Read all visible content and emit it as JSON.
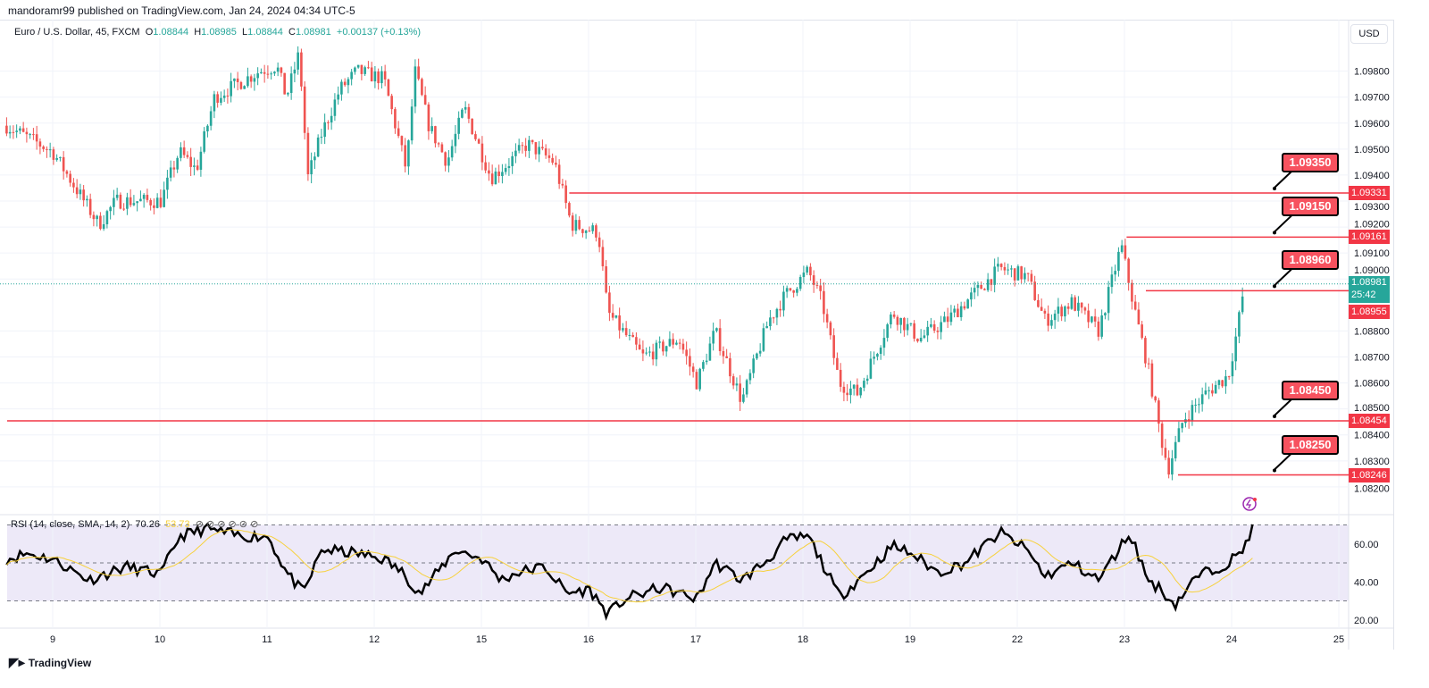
{
  "publish_line": "mandoramr99 published on TradingView.com, Jan 24, 2024 04:34 UTC-5",
  "legend": {
    "symbol": "Euro / U.S. Dollar, 45, FXCM",
    "o_label": "O",
    "o": "1.08844",
    "h_label": "H",
    "h": "1.08985",
    "l_label": "L",
    "l": "1.08844",
    "c_label": "C",
    "c": "1.08981",
    "change": "+0.00137 (+0.13%)"
  },
  "currency_button": "USD",
  "price_axis": [
    "1.09800",
    "1.09700",
    "1.09600",
    "1.09500",
    "1.09400",
    "1.09300",
    "1.09200",
    "1.09100",
    "1.09000",
    "1.08800",
    "1.08700",
    "1.08600",
    "1.08500",
    "1.08400",
    "1.08300",
    "1.08200"
  ],
  "current_price": {
    "value": "1.08981",
    "countdown": "25:42"
  },
  "horizontal_lines": [
    {
      "price": 1.09331,
      "label": "1.09331",
      "start_day": 4.82,
      "callout": "1.09350"
    },
    {
      "price": 1.09161,
      "label": "1.09161",
      "start_day": 10.02,
      "callout": "1.09150"
    },
    {
      "price": 1.08955,
      "label": "1.08955",
      "start_day": 10.2,
      "callout": "1.08960"
    },
    {
      "price": 1.08454,
      "label": "1.08454",
      "start_day": -0.43,
      "callout": "1.08450"
    },
    {
      "price": 1.08246,
      "label": "1.08246",
      "start_day": 10.5,
      "callout": "1.08250"
    }
  ],
  "time_axis": [
    "9",
    "10",
    "11",
    "12",
    "15",
    "16",
    "17",
    "18",
    "19",
    "22",
    "23",
    "24",
    "25"
  ],
  "rsi": {
    "legend": "RSI (14, close, SMA, 14, 2)",
    "value": "70.26",
    "sma_value": "53.73",
    "extra": "⊘ ⊘ ⊘ ⊘ ⊘ ⊘",
    "axis": [
      "60.00",
      "40.00",
      "20.00"
    ],
    "upper": 70,
    "lower": 30
  },
  "brand": "TradingView",
  "colors": {
    "up": "#26a69a",
    "down": "#ef5350",
    "line": "#f23645",
    "rsi_bg": "#ede9f8",
    "sma": "#f7d13c"
  },
  "chart_data": {
    "type": "candlestick",
    "x_unit": "trading days since Jan 9",
    "price_anchors": [
      [
        -0.43,
        1.0959
      ],
      [
        0,
        1.0949
      ],
      [
        0.43,
        1.0921
      ],
      [
        0.59,
        1.093
      ],
      [
        1.01,
        1.093
      ],
      [
        1.18,
        1.0949
      ],
      [
        1.34,
        1.0942
      ],
      [
        1.51,
        1.097
      ],
      [
        1.93,
        1.098
      ],
      [
        2.09,
        1.0982
      ],
      [
        2.18,
        1.097
      ],
      [
        2.3,
        1.0987
      ],
      [
        2.38,
        1.0939
      ],
      [
        2.51,
        1.0956
      ],
      [
        2.68,
        1.0973
      ],
      [
        2.84,
        1.098
      ],
      [
        3.09,
        1.0977
      ],
      [
        3.3,
        1.0942
      ],
      [
        3.38,
        1.098
      ],
      [
        3.51,
        1.0959
      ],
      [
        3.68,
        1.0945
      ],
      [
        3.84,
        1.0966
      ],
      [
        4.09,
        1.0939
      ],
      [
        4.26,
        1.0945
      ],
      [
        4.43,
        1.0952
      ],
      [
        4.68,
        1.0945
      ],
      [
        4.84,
        1.0921
      ],
      [
        5.09,
        1.0918
      ],
      [
        5.18,
        1.0887
      ],
      [
        5.51,
        1.087
      ],
      [
        5.84,
        1.0877
      ],
      [
        6.01,
        1.086
      ],
      [
        6.18,
        1.088
      ],
      [
        6.43,
        1.0853
      ],
      [
        6.68,
        1.0884
      ],
      [
        6.84,
        1.0894
      ],
      [
        7.05,
        1.0903
      ],
      [
        7.18,
        1.0891
      ],
      [
        7.34,
        1.086
      ],
      [
        7.51,
        1.0856
      ],
      [
        7.84,
        1.0887
      ],
      [
        8.09,
        1.0877
      ],
      [
        8.34,
        1.0884
      ],
      [
        8.59,
        1.0894
      ],
      [
        8.84,
        1.0904
      ],
      [
        9.09,
        1.0901
      ],
      [
        9.26,
        1.0884
      ],
      [
        9.51,
        1.0891
      ],
      [
        9.76,
        1.088
      ],
      [
        9.97,
        1.0913
      ],
      [
        10.09,
        1.0889
      ],
      [
        10.22,
        1.0866
      ],
      [
        10.34,
        1.0839
      ],
      [
        10.41,
        1.0827
      ],
      [
        10.55,
        1.0846
      ],
      [
        10.76,
        1.0856
      ],
      [
        10.97,
        1.0863
      ],
      [
        11.05,
        1.088
      ],
      [
        11.12,
        1.0898
      ]
    ],
    "rsi_anchors": [
      [
        -0.43,
        52
      ],
      [
        -0.24,
        55
      ],
      [
        0,
        52
      ],
      [
        0.34,
        41
      ],
      [
        0.68,
        48
      ],
      [
        1.01,
        44
      ],
      [
        1.18,
        64
      ],
      [
        1.43,
        68
      ],
      [
        1.76,
        64
      ],
      [
        2.01,
        64
      ],
      [
        2.18,
        45
      ],
      [
        2.34,
        34
      ],
      [
        2.51,
        57
      ],
      [
        2.84,
        55
      ],
      [
        3.09,
        52
      ],
      [
        3.26,
        45
      ],
      [
        3.43,
        34
      ],
      [
        3.59,
        45
      ],
      [
        3.76,
        57
      ],
      [
        4.01,
        52
      ],
      [
        4.18,
        41
      ],
      [
        4.34,
        45
      ],
      [
        4.59,
        48
      ],
      [
        4.8,
        34
      ],
      [
        5.01,
        36
      ],
      [
        5.18,
        23
      ],
      [
        5.34,
        31
      ],
      [
        5.68,
        37
      ],
      [
        6.01,
        31
      ],
      [
        6.18,
        50
      ],
      [
        6.43,
        41
      ],
      [
        6.68,
        52
      ],
      [
        6.84,
        62
      ],
      [
        7.05,
        64
      ],
      [
        7.18,
        50
      ],
      [
        7.34,
        32
      ],
      [
        7.59,
        45
      ],
      [
        7.84,
        59
      ],
      [
        8.01,
        55
      ],
      [
        8.26,
        45
      ],
      [
        8.51,
        50
      ],
      [
        8.84,
        66
      ],
      [
        9.09,
        57
      ],
      [
        9.26,
        43
      ],
      [
        9.51,
        50
      ],
      [
        9.76,
        41
      ],
      [
        10.05,
        66
      ],
      [
        10.22,
        41
      ],
      [
        10.34,
        36
      ],
      [
        10.47,
        28
      ],
      [
        10.68,
        43
      ],
      [
        10.93,
        49
      ],
      [
        11.09,
        55
      ],
      [
        11.2,
        70
      ]
    ],
    "y_range": [
      1.0816,
      1.0998
    ],
    "rsi_range": [
      15,
      80
    ]
  }
}
